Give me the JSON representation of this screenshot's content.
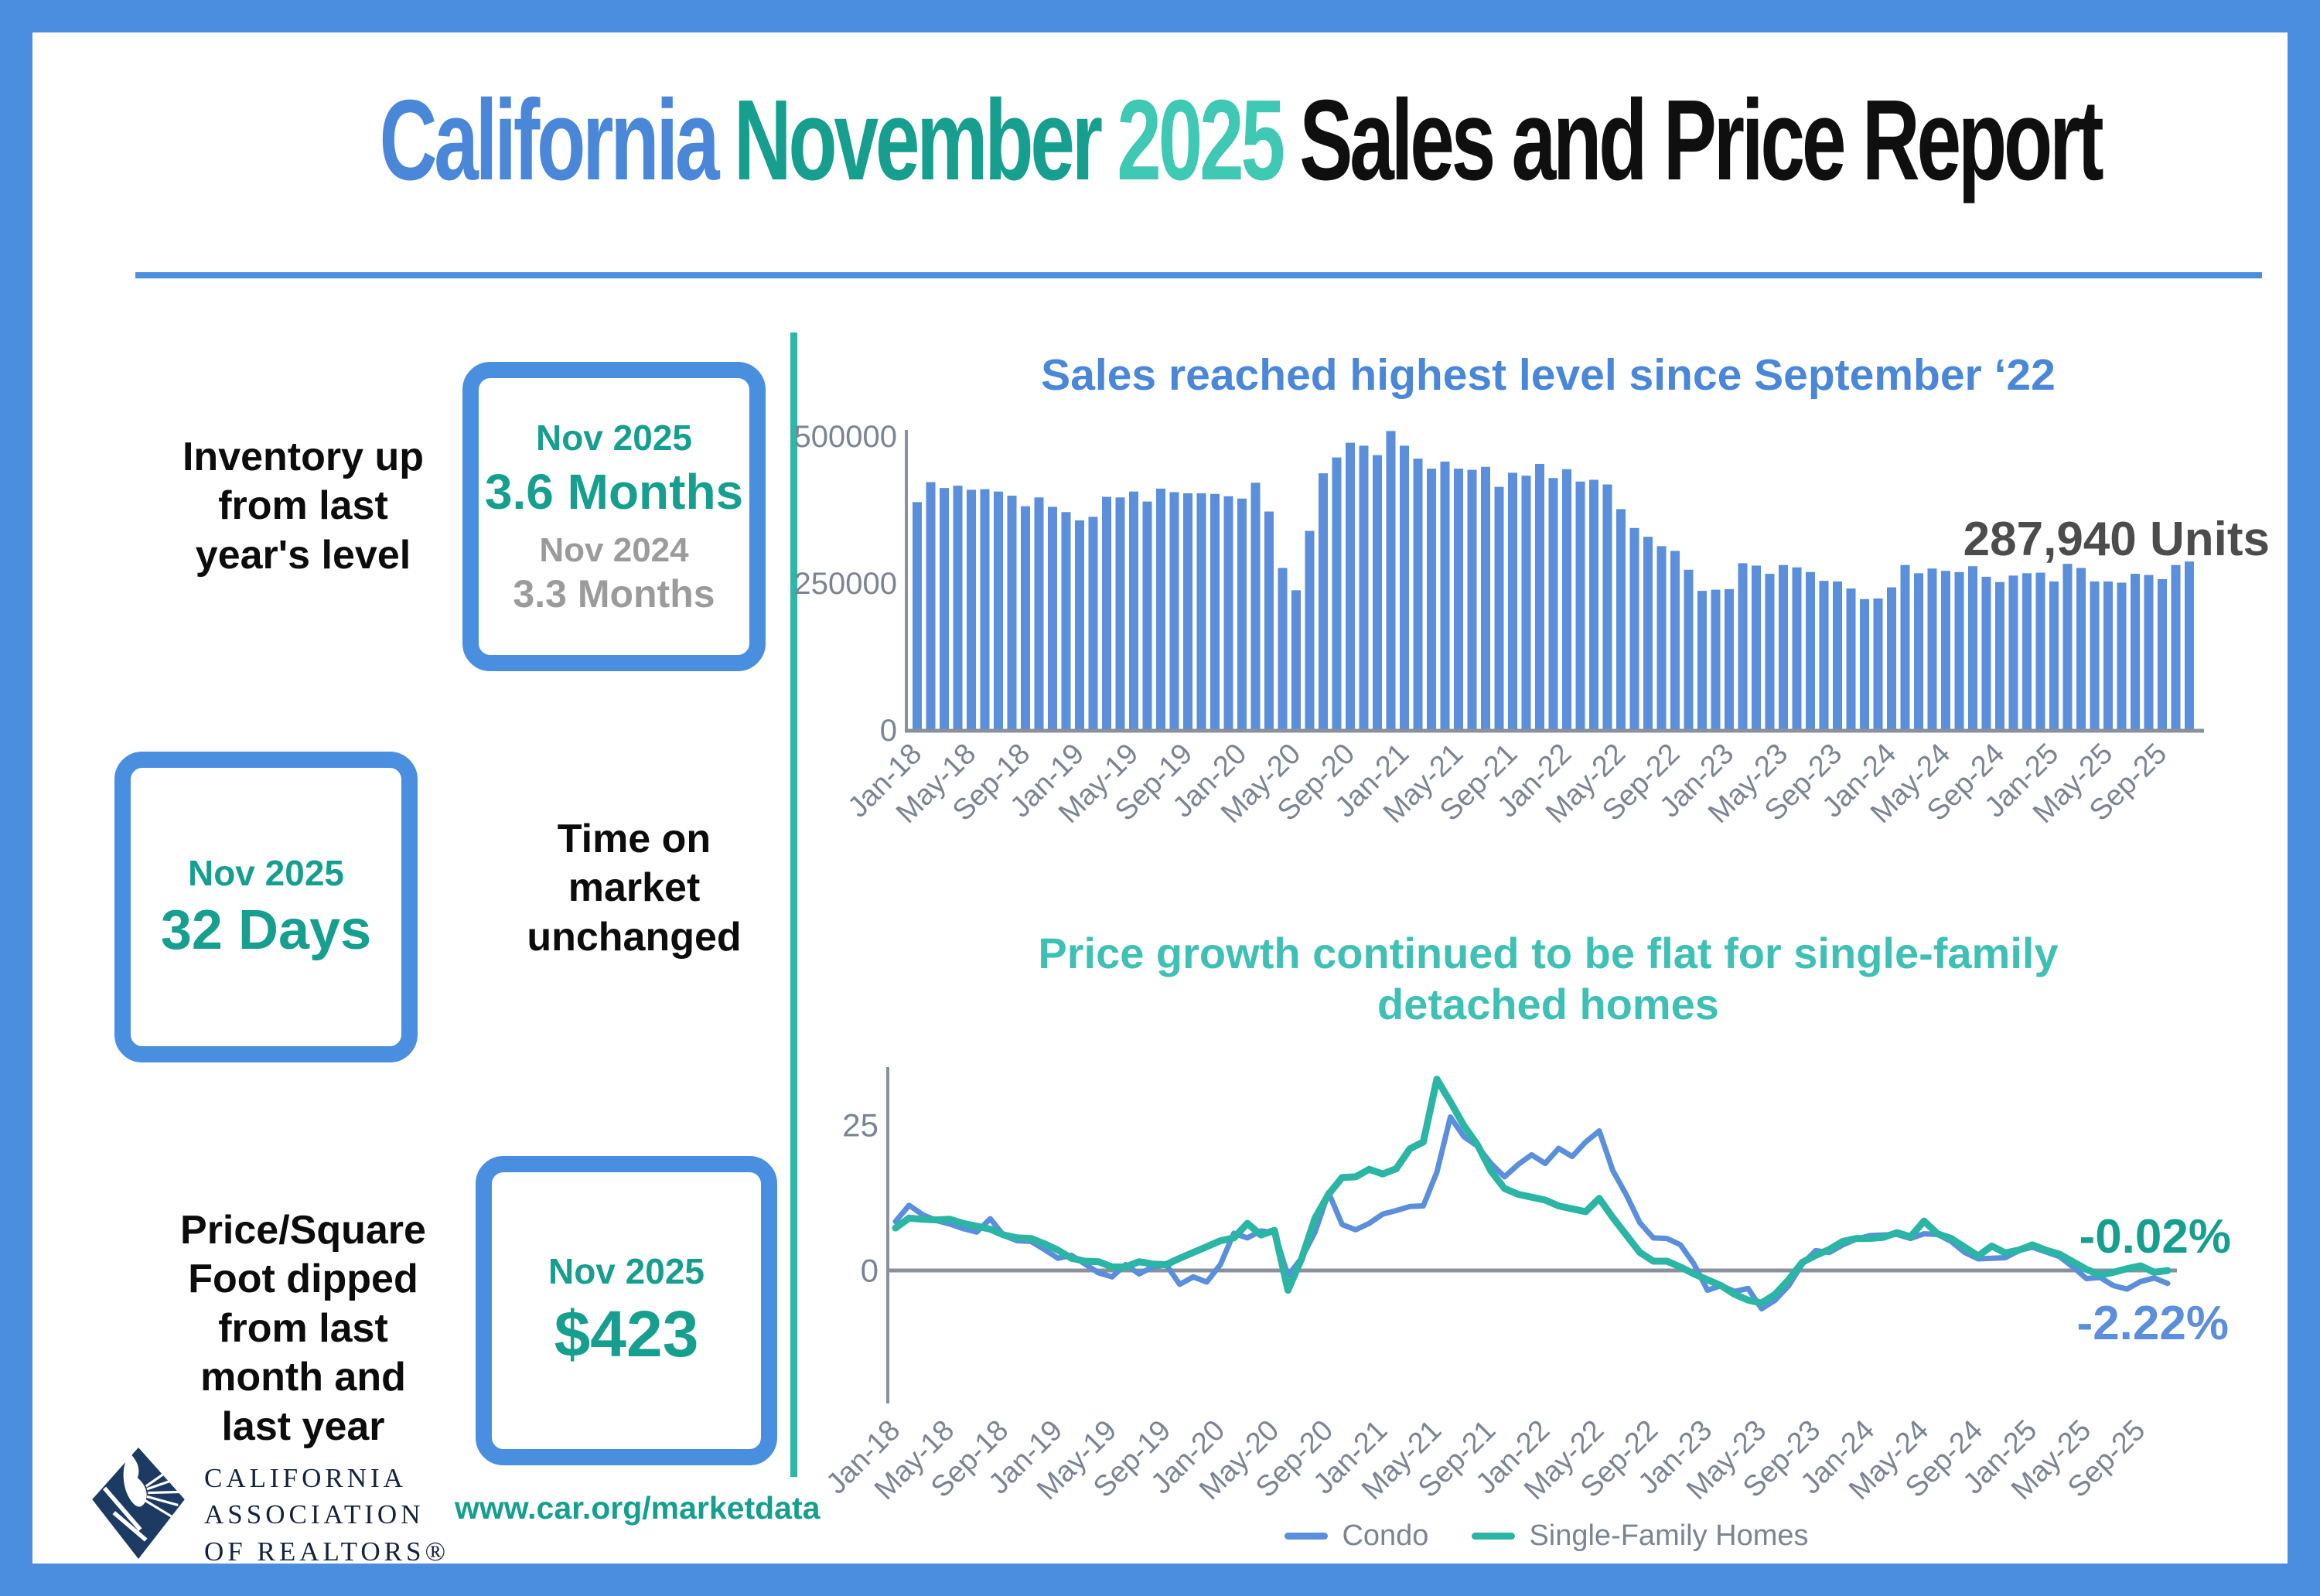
{
  "title": {
    "part1": "California",
    "part2": "November",
    "part3": "2025",
    "part4": "Sales and Price Report"
  },
  "colors": {
    "frame_blue": "#4a8ee0",
    "bar_blue": "#5b8edb",
    "dark_teal": "#169f8f",
    "light_teal": "#3fc9b4",
    "divider_teal": "#2cb7a8",
    "axis_gray": "#7b8492",
    "annotation_gray": "#4c4c4c",
    "logo_navy": "#1d3a63"
  },
  "stats": {
    "inventory": {
      "label": "Inventory up\nfrom last\nyear's level",
      "period": "Nov 2025",
      "value": "3.6 Months",
      "prev_period": "Nov 2024",
      "prev_value": "3.3 Months"
    },
    "time_on_market": {
      "label": "Time on\nmarket\nunchanged",
      "period": "Nov 2025",
      "value": "32 Days"
    },
    "price_sqft": {
      "label": "Price/Square\nFoot dipped\nfrom last\nmonth and\nlast year",
      "period": "Nov 2025",
      "value": "$423"
    }
  },
  "footer": {
    "org_name": "CALIFORNIA\nASSOCIATION\nOF REALTORS®",
    "url": "www.car.org/marketdata"
  },
  "chart_data": [
    {
      "type": "bar",
      "title": "Sales reached highest level since September ‘22",
      "annotation": "287,940 Units",
      "bar_color": "#5b8edb",
      "axis_color": "#8a919c",
      "label_color": "#7b8492",
      "y_ticks": [
        {
          "value": 0,
          "label": "0"
        },
        {
          "value": 250000,
          "label": "250000"
        },
        {
          "value": 500000,
          "label": "500000"
        }
      ],
      "ylim": [
        0,
        500000
      ],
      "tick_every": 4,
      "categories": [
        "Jan-18",
        "Feb-18",
        "Mar-18",
        "Apr-18",
        "May-18",
        "Jun-18",
        "Jul-18",
        "Aug-18",
        "Sep-18",
        "Oct-18",
        "Nov-18",
        "Dec-18",
        "Jan-19",
        "Feb-19",
        "Mar-19",
        "Apr-19",
        "May-19",
        "Jun-19",
        "Jul-19",
        "Aug-19",
        "Sep-19",
        "Oct-19",
        "Nov-19",
        "Dec-19",
        "Jan-20",
        "Feb-20",
        "Mar-20",
        "Apr-20",
        "May-20",
        "Jun-20",
        "Jul-20",
        "Aug-20",
        "Sep-20",
        "Oct-20",
        "Nov-20",
        "Dec-20",
        "Jan-21",
        "Feb-21",
        "Mar-21",
        "Apr-21",
        "May-21",
        "Jun-21",
        "Jul-21",
        "Aug-21",
        "Sep-21",
        "Oct-21",
        "Nov-21",
        "Dec-21",
        "Jan-22",
        "Feb-22",
        "Mar-22",
        "Apr-22",
        "May-22",
        "Jun-22",
        "Jul-22",
        "Aug-22",
        "Sep-22",
        "Oct-22",
        "Nov-22",
        "Dec-22",
        "Jan-23",
        "Feb-23",
        "Mar-23",
        "Apr-23",
        "May-23",
        "Jun-23",
        "Jul-23",
        "Aug-23",
        "Sep-23",
        "Oct-23",
        "Nov-23",
        "Dec-23",
        "Jan-24",
        "Feb-24",
        "Mar-24",
        "Apr-24",
        "May-24",
        "Jun-24",
        "Jul-24",
        "Aug-24",
        "Sep-24",
        "Oct-24",
        "Nov-24",
        "Dec-24",
        "Jan-25",
        "Feb-25",
        "Mar-25",
        "Apr-25",
        "May-25",
        "Jun-25",
        "Jul-25",
        "Aug-25",
        "Sep-25",
        "Oct-25",
        "Nov-25"
      ],
      "values": [
        389000,
        423000,
        413000,
        417000,
        410000,
        411000,
        407000,
        400000,
        382000,
        397000,
        381000,
        372000,
        358000,
        364000,
        398000,
        397000,
        407000,
        390000,
        412000,
        406000,
        404000,
        404000,
        403000,
        399000,
        395000,
        422000,
        373000,
        277000,
        239000,
        340000,
        438000,
        465000,
        490000,
        485000,
        469000,
        510000,
        485000,
        463000,
        446000,
        458000,
        446000,
        444000,
        449000,
        415000,
        439000,
        434000,
        454000,
        430000,
        445000,
        424000,
        427000,
        419000,
        377000,
        345000,
        330000,
        314000,
        306000,
        274000,
        238000,
        240000,
        241000,
        285000,
        281000,
        267000,
        282000,
        278000,
        270000,
        255000,
        254000,
        242000,
        224000,
        225000,
        244000,
        282000,
        268000,
        276000,
        272000,
        270000,
        280000,
        262000,
        253000,
        264000,
        268000,
        269000,
        254000,
        284000,
        277000,
        254000,
        254000,
        252000,
        267000,
        265000,
        258000,
        282000,
        287940
      ]
    },
    {
      "type": "line",
      "title": "Price growth continued to be flat for single-family\ndetached homes",
      "axis_color": "#8a919c",
      "label_color": "#7b8492",
      "y_ticks": [
        {
          "value": 0,
          "label": "0"
        },
        {
          "value": 25,
          "label": "25"
        }
      ],
      "tick_every": 4,
      "end_labels": {
        "sfh": "-0.02%",
        "condo": "-2.22%"
      },
      "categories": [
        "Jan-18",
        "Feb-18",
        "Mar-18",
        "Apr-18",
        "May-18",
        "Jun-18",
        "Jul-18",
        "Aug-18",
        "Sep-18",
        "Oct-18",
        "Nov-18",
        "Dec-18",
        "Jan-19",
        "Feb-19",
        "Mar-19",
        "Apr-19",
        "May-19",
        "Jun-19",
        "Jul-19",
        "Aug-19",
        "Sep-19",
        "Oct-19",
        "Nov-19",
        "Dec-19",
        "Jan-20",
        "Feb-20",
        "Mar-20",
        "Apr-20",
        "May-20",
        "Jun-20",
        "Jul-20",
        "Aug-20",
        "Sep-20",
        "Oct-20",
        "Nov-20",
        "Dec-20",
        "Jan-21",
        "Feb-21",
        "Mar-21",
        "Apr-21",
        "May-21",
        "Jun-21",
        "Jul-21",
        "Aug-21",
        "Sep-21",
        "Oct-21",
        "Nov-21",
        "Dec-21",
        "Jan-22",
        "Feb-22",
        "Mar-22",
        "Apr-22",
        "May-22",
        "Jun-22",
        "Jul-22",
        "Aug-22",
        "Sep-22",
        "Oct-22",
        "Nov-22",
        "Dec-22",
        "Jan-23",
        "Feb-23",
        "Mar-23",
        "Apr-23",
        "May-23",
        "Jun-23",
        "Jul-23",
        "Aug-23",
        "Sep-23",
        "Oct-23",
        "Nov-23",
        "Dec-23",
        "Jan-24",
        "Feb-24",
        "Mar-24",
        "Apr-24",
        "May-24",
        "Jun-24",
        "Jul-24",
        "Aug-24",
        "Sep-24",
        "Oct-24",
        "Nov-24",
        "Dec-24",
        "Jan-25",
        "Feb-25",
        "Mar-25",
        "Apr-25",
        "May-25",
        "Jun-25",
        "Jul-25",
        "Aug-25",
        "Sep-25",
        "Oct-25",
        "Nov-25"
      ],
      "series": [
        {
          "name": "Condo",
          "color": "#5b8edb",
          "width": 7,
          "values": [
            8.4,
            11.2,
            9.6,
            8.6,
            8.0,
            7.2,
            6.6,
            8.9,
            6.0,
            5.1,
            5.0,
            3.6,
            2.1,
            2.6,
            1.1,
            -0.4,
            -1.1,
            1.0,
            -0.6,
            0.6,
            1.0,
            -2.4,
            -1.1,
            -2.0,
            1.0,
            6.4,
            5.6,
            6.8,
            6.5,
            -0.9,
            2.1,
            6.6,
            13.4,
            7.9,
            7.0,
            8.1,
            9.7,
            10.3,
            11.0,
            11.1,
            16.9,
            26.4,
            23.0,
            21.4,
            18.4,
            16.1,
            18.2,
            19.9,
            18.4,
            21.0,
            19.6,
            22.1,
            24.0,
            17.2,
            13.0,
            8.2,
            5.6,
            5.5,
            4.4,
            1.1,
            -3.4,
            -2.6,
            -3.6,
            -3.1,
            -6.6,
            -5.1,
            -2.6,
            1.1,
            3.4,
            3.1,
            4.4,
            5.4,
            6.0,
            6.1,
            6.2,
            5.5,
            6.3,
            6.2,
            5.0,
            3.1,
            2.0,
            2.1,
            2.2,
            3.4,
            4.0,
            3.2,
            2.4,
            0.6,
            -1.4,
            -1.2,
            -2.6,
            -3.2,
            -1.9,
            -1.3,
            -2.22
          ]
        },
        {
          "name": "Single-Family Homes",
          "color": "#2ab5a5",
          "width": 9,
          "values": [
            7.3,
            9.0,
            8.8,
            8.7,
            8.8,
            8.1,
            7.6,
            7.1,
            6.1,
            5.6,
            5.5,
            4.6,
            3.5,
            2.1,
            1.6,
            1.5,
            0.6,
            0.6,
            1.5,
            1.1,
            1.0,
            2.1,
            3.1,
            4.1,
            5.1,
            5.6,
            8.1,
            6.1,
            6.9,
            -3.4,
            2.0,
            9.0,
            13.1,
            16.0,
            16.1,
            17.4,
            16.6,
            17.5,
            20.9,
            22.1,
            32.9,
            29.0,
            24.9,
            21.6,
            17.1,
            14.1,
            13.1,
            12.6,
            12.1,
            11.1,
            10.6,
            10.1,
            12.4,
            9.1,
            6.1,
            3.1,
            1.6,
            1.6,
            0.6,
            -0.6,
            -1.6,
            -2.6,
            -4.1,
            -5.1,
            -5.6,
            -4.1,
            -1.6,
            1.4,
            2.6,
            3.6,
            5.0,
            5.5,
            5.5,
            5.7,
            6.5,
            5.8,
            8.5,
            6.3,
            5.5,
            4.0,
            2.5,
            4.2,
            3.0,
            3.5,
            4.4,
            3.5,
            2.8,
            1.5,
            0.2,
            -0.8,
            -0.3,
            0.3,
            0.8,
            -0.3,
            -0.02
          ]
        }
      ]
    }
  ]
}
